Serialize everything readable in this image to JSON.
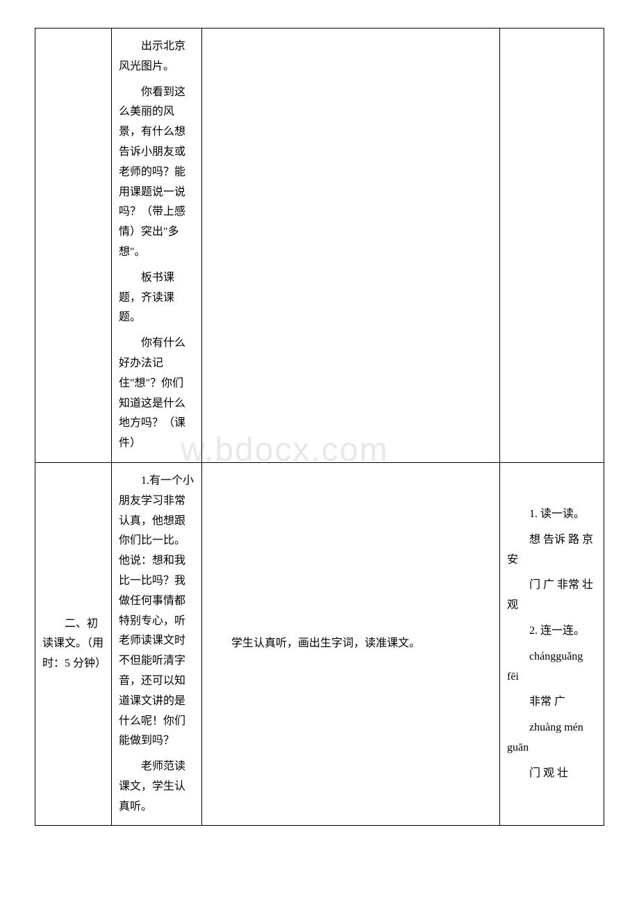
{
  "watermark": "w.bdocx.com",
  "row1": {
    "col1": "",
    "col2_p1": "出示北京风光图片。",
    "col2_p2": "你看到这么美丽的风景，有什么想告诉小朋友或老师的吗？能用课题说一说吗？（带上感情）突出\"多想\"。",
    "col2_p3": "板书课题，齐读课题。",
    "col2_p4": "你有什么好办法记住\"想\"？你们知道这是什么地方吗？（课件）",
    "col3": "",
    "col4": ""
  },
  "row2": {
    "col1": "二、初读课文。（用时：5 分钟）",
    "col2_p1": "1.有一个小朋友学习非常认真，他想跟你们比一比。他说：想和我比一比吗？我做任何事情都特别专心，听老师读课文时不但能听清字音，还可以知道课文讲的是什么呢！你们能做到吗？",
    "col2_p2": "老师范读课文，学生认真听。",
    "col3": "学生认真听，画出生字词，读准课文。",
    "col4_p1": "1. 读一读。",
    "col4_p2": "想 告诉 路 京 安",
    "col4_p3": "门 广 非常 壮 观",
    "col4_p4": "2. 连一连。",
    "col4_p5": "chángguǎng fēi",
    "col4_p6": "非常 广",
    "col4_p7": "zhuàng mén guān",
    "col4_p8": "门 观 壮"
  }
}
